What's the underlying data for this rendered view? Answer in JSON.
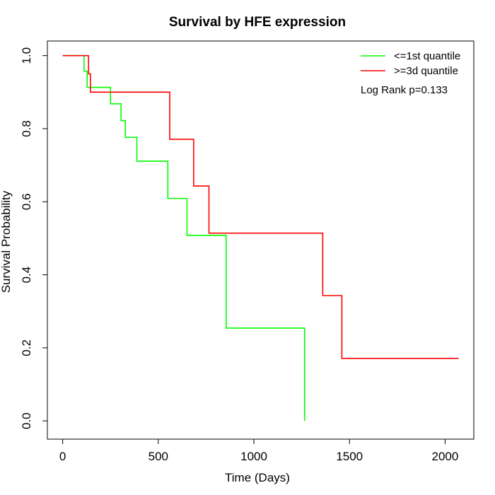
{
  "chart_data": {
    "type": "line",
    "title": "Survival by HFE expression",
    "xlabel": "Time (Days)",
    "ylabel": "Survival Probability",
    "xlim": [
      -80,
      2150
    ],
    "ylim": [
      -0.05,
      1.04
    ],
    "x_ticks": [
      0,
      500,
      1000,
      1500,
      2000
    ],
    "y_ticks": [
      0.0,
      0.2,
      0.4,
      0.6,
      0.8,
      1.0
    ],
    "x_tick_labels": [
      "0",
      "500",
      "1000",
      "1500",
      "2000"
    ],
    "y_tick_labels": [
      "0.0",
      "0.2",
      "0.4",
      "0.6",
      "0.8",
      "1.0"
    ],
    "grid": false,
    "legend_position": "top-right",
    "annotation": "Log Rank p=0.133",
    "series": [
      {
        "name": "<=1st quantile",
        "color": "#00ff00",
        "step": true,
        "x": [
          0,
          112,
          128,
          250,
          305,
          328,
          388,
          550,
          650,
          855,
          1265,
          1265
        ],
        "y": [
          1.0,
          0.957,
          0.913,
          0.868,
          0.822,
          0.776,
          0.711,
          0.609,
          0.508,
          0.254,
          0.254,
          0.0
        ]
      },
      {
        "name": ">=3d quantile",
        "color": "#ff0000",
        "step": true,
        "x": [
          0,
          135,
          145,
          560,
          685,
          765,
          1360,
          1460,
          2070
        ],
        "y": [
          1.0,
          0.95,
          0.9,
          0.771,
          0.643,
          0.514,
          0.343,
          0.171,
          0.171
        ]
      }
    ]
  }
}
